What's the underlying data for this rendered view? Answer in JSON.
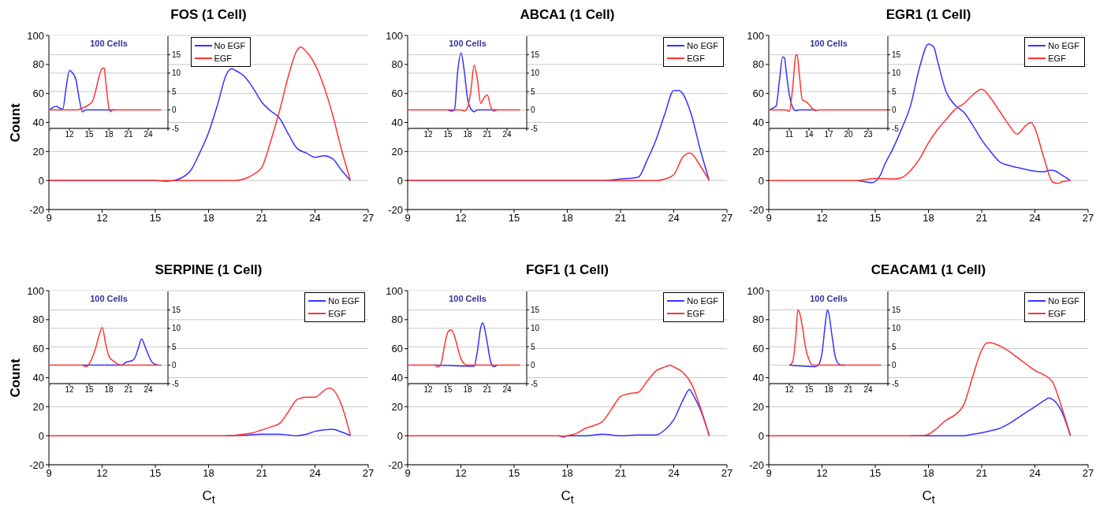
{
  "chart_data": [
    {
      "type": "line",
      "title": "FOS (1 Cell)",
      "ylabel": "Count",
      "xlim": [
        9,
        27
      ],
      "xticks": [
        9,
        12,
        15,
        18,
        21,
        24,
        27
      ],
      "ylim": [
        -20,
        100
      ],
      "yticks": [
        -20,
        0,
        20,
        40,
        60,
        80,
        100
      ],
      "grid": "y",
      "legend": "top",
      "series": [
        {
          "name": "No EGF",
          "color": "#3333ff",
          "x": [
            9,
            15,
            15.5,
            16,
            16.5,
            17,
            17.5,
            18,
            18.5,
            19,
            19.3,
            19.5,
            20,
            20.5,
            21,
            21.5,
            22,
            22.5,
            23,
            23.5,
            24,
            24.5,
            25,
            25.5,
            26
          ],
          "values": [
            0,
            0,
            -0.5,
            0,
            2,
            7,
            19,
            33,
            52,
            73,
            77,
            76,
            72,
            64,
            54,
            48,
            43,
            32,
            22,
            19,
            16,
            17,
            15,
            7,
            0
          ]
        },
        {
          "name": "EGF",
          "color": "#ff3333",
          "x": [
            9,
            19.5,
            20,
            20.5,
            21,
            21.5,
            22,
            22.5,
            23,
            23.2,
            23.5,
            24,
            24.5,
            25,
            25.5,
            26
          ],
          "values": [
            0,
            0,
            1,
            4,
            9,
            27,
            48,
            72,
            90,
            92,
            89,
            80,
            65,
            45,
            21,
            0
          ]
        }
      ]
    },
    {
      "type": "line",
      "title": "100 Cells",
      "xlim": [
        9,
        27
      ],
      "xticks": [
        {
          "value": 9,
          "label": null
        },
        12,
        15,
        18,
        21,
        24,
        {
          "value": 27,
          "label": null
        }
      ],
      "ylim": [
        -5,
        20
      ],
      "yticks": [
        -5,
        0,
        5,
        10,
        15
      ],
      "grid": "y",
      "series": [
        {
          "color": "#3333ff",
          "x": [
            9,
            9.5,
            10,
            10.5,
            11,
            11.5,
            12,
            12.5,
            13,
            13.5,
            14,
            14.5,
            19
          ],
          "values": [
            0,
            0.7,
            1,
            0.5,
            0.3,
            6,
            10.7,
            10,
            8.2,
            3,
            -0.5,
            0,
            0
          ]
        },
        {
          "color": "#ff3333",
          "x": [
            9,
            13,
            14,
            15,
            15.5,
            16,
            16.5,
            17,
            17.3,
            17.5,
            18,
            18.3,
            18.5,
            26
          ],
          "values": [
            0,
            0,
            0.5,
            1.5,
            2.3,
            5.2,
            9,
            11.3,
            11.4,
            8.3,
            0.7,
            -0.5,
            0,
            0
          ]
        }
      ]
    },
    {
      "type": "line",
      "title": "ABCA1 (1 Cell)",
      "xlim": [
        9,
        27
      ],
      "xticks": [
        9,
        12,
        15,
        18,
        21,
        24,
        27
      ],
      "ylim": [
        -20,
        100
      ],
      "yticks": [
        -20,
        0,
        20,
        40,
        60,
        80,
        100
      ],
      "grid": "y",
      "legend": "top right",
      "series": [
        {
          "name": "No EGF",
          "color": "#3333ff",
          "x": [
            9,
            20,
            21,
            22,
            22.5,
            23,
            23.5,
            24,
            24.3,
            24.5,
            25,
            25.5,
            26
          ],
          "values": [
            0,
            0,
            1,
            2.3,
            14,
            28,
            46,
            62,
            62,
            60,
            45,
            21,
            0
          ]
        },
        {
          "name": "EGF",
          "color": "#ff3333",
          "x": [
            9,
            23,
            23.5,
            24,
            24.5,
            24.9,
            25,
            25.5,
            26
          ],
          "values": [
            0,
            0,
            1,
            4,
            16,
            19,
            18.5,
            10,
            0
          ]
        }
      ]
    },
    {
      "type": "line",
      "title": "100 Cells",
      "xlim": [
        9,
        27
      ],
      "xticks": [
        {
          "value": 9,
          "label": null
        },
        12,
        15,
        18,
        21,
        24,
        {
          "value": 27,
          "label": null
        }
      ],
      "ylim": [
        -5,
        20
      ],
      "yticks": [
        -5,
        0,
        5,
        10,
        15
      ],
      "grid": "y",
      "series": [
        {
          "color": "#3333ff",
          "x": [
            15,
            15.5,
            16,
            16.5,
            17,
            17.5,
            18,
            18.5,
            19,
            19.5,
            22.5
          ],
          "values": [
            0,
            -0.3,
            0,
            10.5,
            15.5,
            10.5,
            3,
            0.3,
            -0.5,
            0,
            0
          ]
        },
        {
          "color": "#ff3333",
          "x": [
            9,
            17,
            17.5,
            18,
            18.5,
            19,
            19.5,
            20,
            20.5,
            21,
            21.5,
            22,
            22.5,
            26
          ],
          "values": [
            0,
            0,
            -0.3,
            0.7,
            5.2,
            12.2,
            8.2,
            1.8,
            3.3,
            4.1,
            1,
            -0.3,
            0,
            0
          ]
        }
      ]
    },
    {
      "type": "line",
      "title": "EGR1 (1 Cell)",
      "xlim": [
        9,
        27
      ],
      "xticks": [
        9,
        12,
        15,
        18,
        21,
        24,
        27
      ],
      "ylim": [
        -20,
        100
      ],
      "yticks": [
        -20,
        0,
        20,
        40,
        60,
        80,
        100
      ],
      "grid": "y",
      "legend": "top right",
      "series": [
        {
          "name": "No EGF",
          "color": "#3333ff",
          "x": [
            14,
            14.5,
            14.8,
            15.3,
            15.5,
            16,
            16.5,
            17,
            17.5,
            18,
            18.3,
            18.5,
            19,
            19.5,
            20,
            20.5,
            21,
            21.5,
            22,
            22.5,
            23,
            24,
            24.5,
            24.8,
            25,
            25.5,
            26
          ],
          "values": [
            0,
            -1,
            -1.5,
            4,
            10,
            22,
            36,
            52,
            78,
            94,
            92,
            83,
            61,
            52,
            47,
            38,
            28,
            20,
            13,
            10.5,
            9,
            6.5,
            6,
            7,
            7,
            4,
            0
          ]
        },
        {
          "name": "EGF",
          "color": "#ff3333",
          "x": [
            9,
            14,
            15,
            16,
            16.5,
            17,
            17.5,
            18,
            18.5,
            19,
            19.5,
            20,
            20.5,
            21,
            21.5,
            22,
            22.5,
            23,
            23.5,
            23.8,
            24,
            24.5,
            25,
            25.3,
            25.5,
            26
          ],
          "values": [
            0,
            0,
            1.5,
            1,
            2,
            7,
            15,
            26,
            35,
            42,
            49,
            53,
            59,
            63,
            57,
            48,
            39,
            32,
            38,
            40,
            36,
            16,
            -1,
            -2,
            -1,
            0
          ]
        }
      ]
    },
    {
      "type": "line",
      "title": "100 Cells",
      "xlim": [
        8,
        26
      ],
      "xticks": [
        {
          "value": 8,
          "label": null
        },
        11,
        14,
        17,
        20,
        23,
        {
          "value": 26,
          "label": null
        }
      ],
      "ylim": [
        -5,
        20
      ],
      "yticks": [
        -5,
        0,
        5,
        10,
        15
      ],
      "grid": "y",
      "series": [
        {
          "color": "#3333ff",
          "x": [
            8,
            8.5,
            9,
            9.5,
            10,
            10.3,
            10.5,
            11,
            11.5,
            12,
            12.5,
            15
          ],
          "values": [
            0,
            0.5,
            1.1,
            8,
            14.4,
            14,
            11,
            4.2,
            0.8,
            -0.2,
            0,
            0
          ]
        },
        {
          "color": "#ff3333",
          "x": [
            8,
            10.5,
            11,
            11.5,
            12,
            12.2,
            12.5,
            13,
            13.5,
            14,
            14.5,
            15,
            15.5,
            26
          ],
          "values": [
            0,
            0,
            -0.4,
            5.7,
            14.8,
            15,
            10.2,
            2.7,
            2.3,
            1.5,
            0.4,
            -0.2,
            0,
            0
          ]
        }
      ]
    },
    {
      "type": "line",
      "title": "SERPINE (1 Cell)",
      "xlabel": "C$_{t}$",
      "ylabel": "Count",
      "xlim": [
        9,
        27
      ],
      "xticks": [
        9,
        12,
        15,
        18,
        21,
        24,
        27
      ],
      "ylim": [
        -20,
        100
      ],
      "yticks": [
        -20,
        0,
        20,
        40,
        60,
        80,
        100
      ],
      "grid": "y",
      "legend": "top right",
      "series": [
        {
          "name": "No EGF",
          "color": "#3333ff",
          "x": [
            19,
            20,
            21,
            22,
            22.5,
            23,
            23.5,
            24,
            24.5,
            25,
            25.5,
            26
          ],
          "values": [
            0,
            0.3,
            1,
            1,
            0.5,
            0,
            1,
            3,
            4,
            4.5,
            2.5,
            0
          ]
        },
        {
          "name": "EGF",
          "color": "#ff3333",
          "x": [
            9,
            19,
            20,
            20.5,
            21,
            21.5,
            22,
            22.5,
            23,
            23.5,
            24,
            24.5,
            24.8,
            25,
            25.5,
            26
          ],
          "values": [
            0,
            0,
            1,
            2,
            4,
            6,
            8.4,
            16.5,
            25,
            26.5,
            26.5,
            31,
            33,
            32,
            21,
            0
          ]
        }
      ]
    },
    {
      "type": "line",
      "title": "100 Cells",
      "xlim": [
        9,
        27
      ],
      "xticks": [
        {
          "value": 9,
          "label": null
        },
        12,
        15,
        18,
        21,
        24,
        {
          "value": 27,
          "label": null
        }
      ],
      "ylim": [
        -5,
        20
      ],
      "yticks": [
        -5,
        0,
        5,
        10,
        15
      ],
      "grid": "y",
      "series": [
        {
          "color": "#3333ff",
          "x": [
            14,
            20,
            20.5,
            21,
            21.5,
            22,
            22.5,
            23,
            23.5,
            24,
            24.5,
            25,
            25.5
          ],
          "values": [
            0,
            0,
            0.7,
            1,
            1.2,
            2.1,
            4.7,
            7.1,
            5.1,
            2.9,
            1,
            0.3,
            0
          ]
        },
        {
          "color": "#ff3333",
          "x": [
            9,
            14,
            14.5,
            15,
            15.5,
            16,
            16.5,
            17,
            17.5,
            18,
            18.5,
            19,
            20,
            26
          ],
          "values": [
            0,
            0,
            -0.4,
            0.3,
            2.1,
            4.7,
            8,
            10.2,
            6,
            2.5,
            1.4,
            0.7,
            0,
            0
          ]
        }
      ]
    },
    {
      "type": "line",
      "title": "FGF1 (1 Cell)",
      "xlabel": "C$_{t}$",
      "xlim": [
        9,
        27
      ],
      "xticks": [
        9,
        12,
        15,
        18,
        21,
        24,
        27
      ],
      "ylim": [
        -20,
        100
      ],
      "yticks": [
        -20,
        0,
        20,
        40,
        60,
        80,
        100
      ],
      "grid": "y",
      "legend": "top right",
      "series": [
        {
          "name": "No EGF",
          "color": "#3333ff",
          "x": [
            17.5,
            17.8,
            18,
            19,
            20,
            21,
            22,
            23,
            23.5,
            24,
            24.5,
            24.9,
            25,
            25.5,
            26
          ],
          "values": [
            0,
            -0.5,
            0,
            0,
            1,
            0,
            0.5,
            0.5,
            4,
            11,
            24,
            32,
            30,
            18,
            0
          ]
        },
        {
          "name": "EGF",
          "color": "#ff3333",
          "x": [
            9,
            17.5,
            17.8,
            18,
            18.5,
            19,
            19.5,
            20,
            20.5,
            21,
            21.5,
            22,
            22.5,
            23,
            23.5,
            23.8,
            24,
            24.5,
            25,
            25.5,
            26
          ],
          "values": [
            0,
            0,
            -1,
            0,
            1.5,
            5,
            7,
            10,
            18.5,
            27,
            29,
            30,
            37.5,
            44.7,
            47.4,
            48.5,
            47.4,
            43.8,
            35.7,
            19.5,
            0
          ]
        }
      ]
    },
    {
      "type": "line",
      "title": "100 Cells",
      "xlim": [
        9,
        27
      ],
      "xticks": [
        {
          "value": 9,
          "label": null
        },
        12,
        15,
        18,
        21,
        24,
        {
          "value": 27,
          "label": null
        }
      ],
      "ylim": [
        -5,
        20
      ],
      "yticks": [
        -5,
        0,
        5,
        10,
        15
      ],
      "grid": "y",
      "series": [
        {
          "color": "#3333ff",
          "x": [
            13,
            19,
            19.5,
            20,
            20.3,
            20.5,
            21,
            21.5,
            22,
            22.5
          ],
          "values": [
            0,
            -0.3,
            3.9,
            10.2,
            11.5,
            10.6,
            6.1,
            1,
            -0.4,
            0
          ]
        },
        {
          "color": "#ff3333",
          "x": [
            9,
            13,
            13.5,
            14,
            14.5,
            15,
            15.5,
            16,
            16.5,
            17,
            17.5,
            18,
            26
          ],
          "values": [
            0,
            0,
            -0.5,
            0.6,
            5.4,
            9,
            9.6,
            8,
            4.7,
            1.7,
            0.4,
            0,
            0
          ]
        }
      ]
    },
    {
      "type": "line",
      "title": "CEACAM1 (1 Cell)",
      "xlabel": "C$_{t}$",
      "xlim": [
        9,
        27
      ],
      "xticks": [
        9,
        12,
        15,
        18,
        21,
        24,
        27
      ],
      "ylim": [
        -20,
        100
      ],
      "yticks": [
        -20,
        0,
        20,
        40,
        60,
        80,
        100
      ],
      "grid": "y",
      "legend": "top right",
      "series": [
        {
          "name": "No EGF",
          "color": "#3333ff",
          "x": [
            17,
            20,
            20.5,
            21,
            21.5,
            22,
            22.5,
            23,
            23.5,
            24,
            24.5,
            24.8,
            25,
            25.5,
            26
          ],
          "values": [
            0,
            0,
            1,
            2,
            3.5,
            5,
            8,
            12,
            16,
            20,
            24,
            26,
            25,
            17,
            0
          ]
        },
        {
          "name": "EGF",
          "color": "#ff3333",
          "x": [
            9,
            17.5,
            17.9,
            18.5,
            19,
            19.5,
            20,
            20.5,
            21,
            21.3,
            21.5,
            22,
            22.5,
            23,
            23.5,
            24,
            24.5,
            25,
            25.5,
            26
          ],
          "values": [
            0,
            0,
            0.5,
            5.4,
            10.8,
            14.4,
            21.6,
            41,
            59,
            64,
            64,
            62,
            58.5,
            54,
            49.5,
            45,
            42,
            37,
            20,
            0
          ]
        }
      ]
    },
    {
      "type": "line",
      "title": "100 Cells",
      "xlim": [
        9,
        27
      ],
      "xticks": [
        {
          "value": 9,
          "label": null
        },
        12,
        15,
        18,
        21,
        24,
        {
          "value": 27,
          "label": null
        }
      ],
      "ylim": [
        -5,
        20
      ],
      "yticks": [
        -5,
        0,
        5,
        10,
        15
      ],
      "grid": "y",
      "series": [
        {
          "color": "#3333ff",
          "x": [
            12,
            16,
            16.5,
            17,
            17.5,
            17.8,
            18,
            18.5,
            19,
            19.5,
            20,
            20.5
          ],
          "values": [
            0,
            -0.4,
            0.2,
            3.5,
            11.5,
            15,
            14.2,
            8,
            2.3,
            0.4,
            0,
            0
          ]
        },
        {
          "color": "#ff3333",
          "x": [
            12,
            12.5,
            13,
            13.3,
            13.5,
            14,
            14.5,
            15,
            15.5,
            26
          ],
          "values": [
            0,
            0.8,
            8,
            15,
            14.6,
            10.4,
            4.6,
            1.5,
            0,
            0
          ]
        }
      ]
    }
  ]
}
